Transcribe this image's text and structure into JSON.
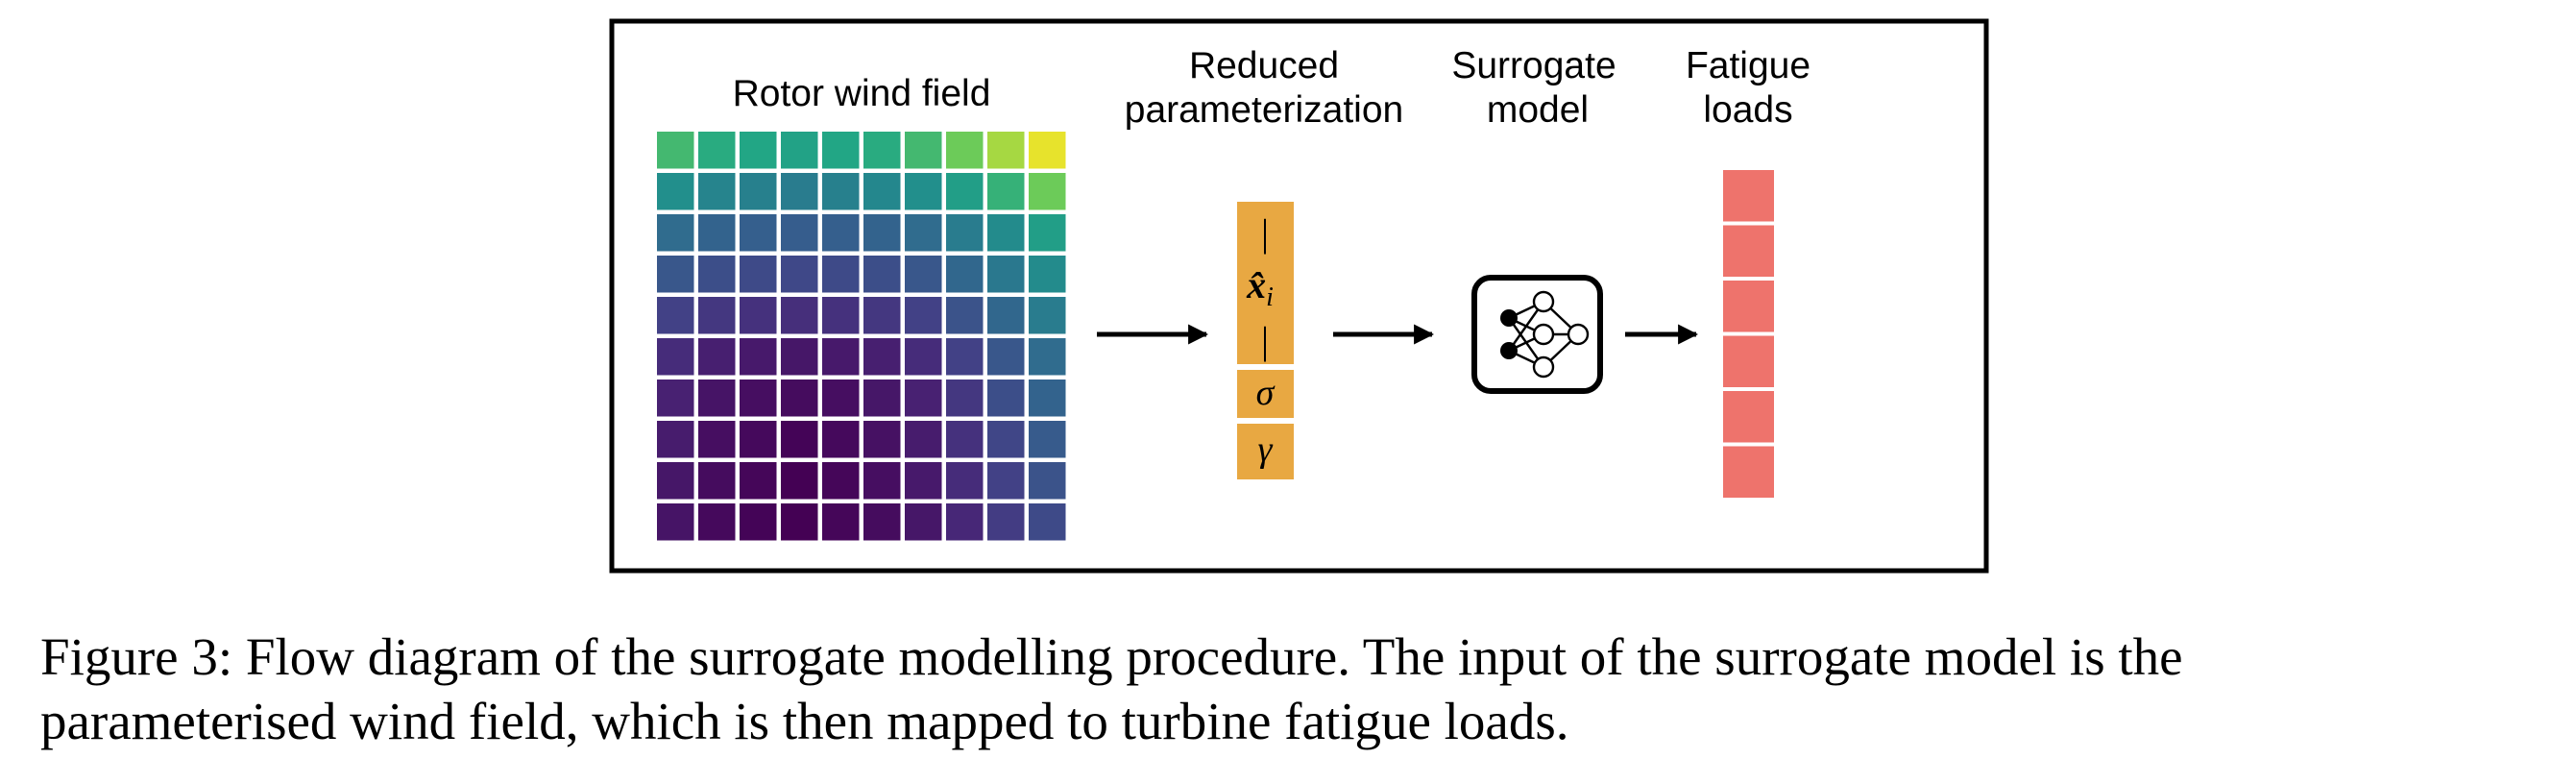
{
  "figure": {
    "labels": {
      "wind_field": "Rotor wind field",
      "reduced_line1": "Reduced",
      "reduced_line2": "parameterization",
      "surrogate_line1": "Surrogate",
      "surrogate_line2": "model",
      "fatigue_line1": "Fatigue",
      "fatigue_line2": "loads"
    },
    "wind_field_grid": {
      "rows": 10,
      "cols": 10,
      "colormap": "viridis",
      "values": [
        [
          0.8,
          0.76,
          0.74,
          0.72,
          0.74,
          0.76,
          0.8,
          0.86,
          0.92,
          0.98
        ],
        [
          0.62,
          0.56,
          0.54,
          0.52,
          0.54,
          0.58,
          0.62,
          0.7,
          0.78,
          0.86
        ],
        [
          0.44,
          0.4,
          0.38,
          0.37,
          0.38,
          0.4,
          0.44,
          0.52,
          0.6,
          0.7
        ],
        [
          0.34,
          0.3,
          0.28,
          0.27,
          0.28,
          0.3,
          0.34,
          0.42,
          0.5,
          0.6
        ],
        [
          0.24,
          0.2,
          0.18,
          0.17,
          0.18,
          0.2,
          0.24,
          0.32,
          0.42,
          0.52
        ],
        [
          0.16,
          0.11,
          0.09,
          0.08,
          0.09,
          0.11,
          0.16,
          0.24,
          0.34,
          0.44
        ],
        [
          0.12,
          0.07,
          0.05,
          0.04,
          0.05,
          0.08,
          0.12,
          0.2,
          0.3,
          0.4
        ],
        [
          0.1,
          0.05,
          0.03,
          0.01,
          0.03,
          0.06,
          0.1,
          0.18,
          0.26,
          0.36
        ],
        [
          0.08,
          0.04,
          0.02,
          0.0,
          0.02,
          0.05,
          0.09,
          0.16,
          0.24,
          0.32
        ],
        [
          0.07,
          0.03,
          0.01,
          0.0,
          0.02,
          0.04,
          0.08,
          0.14,
          0.22,
          0.28
        ]
      ]
    },
    "parameter_vector": {
      "color": "#E8A842",
      "bar_top": "|",
      "x_symbol": "x̂",
      "x_subscript": "i",
      "bar_bottom": "|",
      "sigma": "σ",
      "gamma": "γ"
    },
    "surrogate_icon": "neural-network-icon",
    "fatigue_loads": {
      "color": "#EE736C",
      "segments": 6
    },
    "arrow_color": "#000000"
  },
  "caption": {
    "line1": "Figure 3: Flow diagram of the surrogate modelling procedure. The input of the surrogate model is the",
    "line2": "parameterised wind field, which is then mapped to turbine fatigue loads."
  }
}
